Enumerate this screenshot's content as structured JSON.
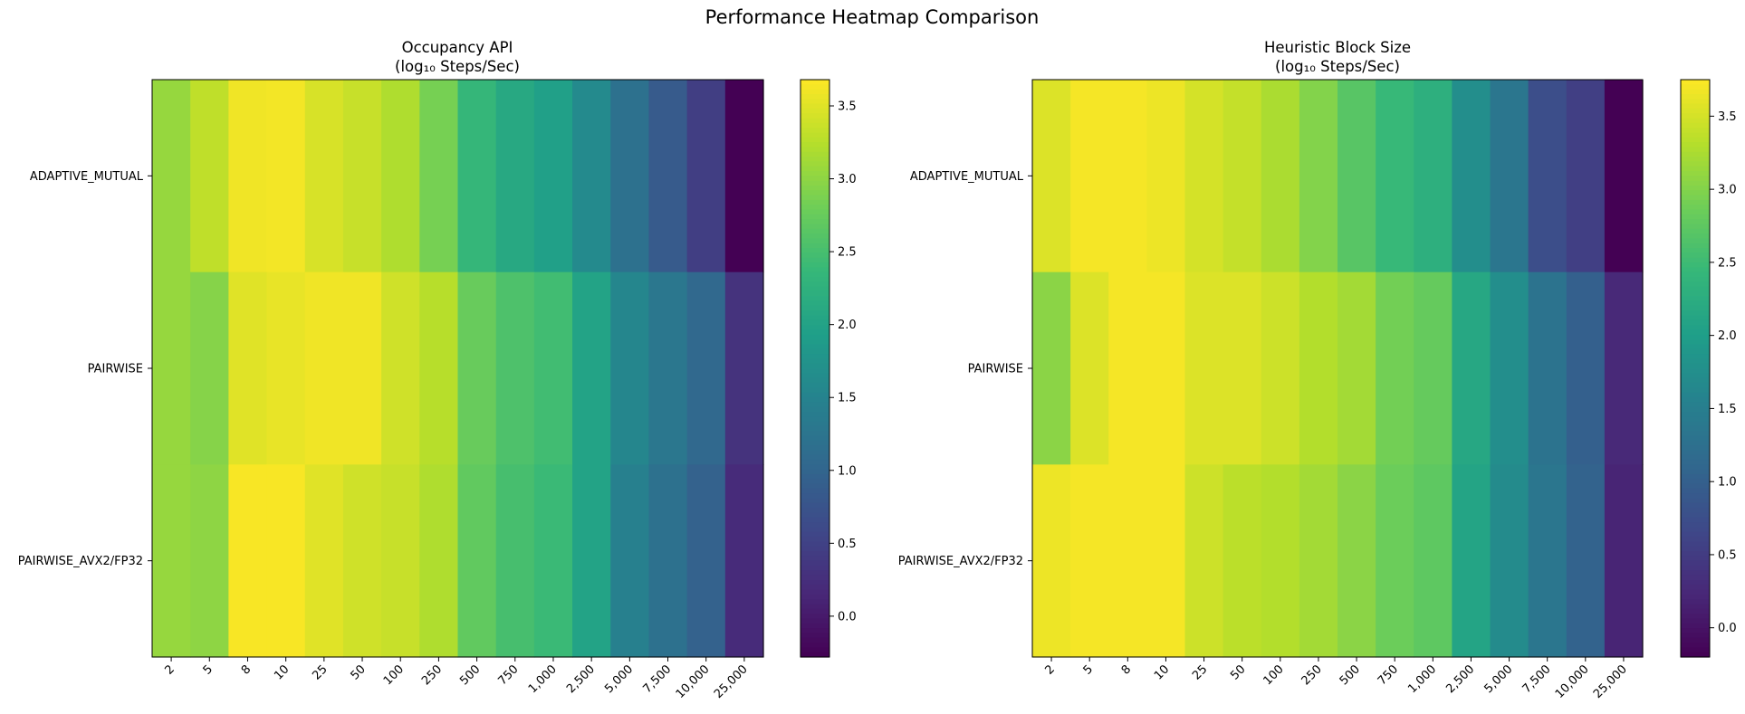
{
  "figure": {
    "title": "Performance Heatmap Comparison"
  },
  "chart_data": [
    {
      "type": "heatmap",
      "title": "Occupancy API",
      "subtitle": "(log₁₀ Steps/Sec)",
      "rows": [
        "ADAPTIVE_MUTUAL",
        "PAIRWISE",
        "PAIRWISE_AVX2/FP32"
      ],
      "columns": [
        "2",
        "5",
        "8",
        "10",
        "25",
        "50",
        "100",
        "250",
        "500",
        "750",
        "1,000",
        "2,500",
        "5,000",
        "7,500",
        "10,000",
        "25,000"
      ],
      "values": [
        [
          3.05,
          3.3,
          3.6,
          3.62,
          3.45,
          3.35,
          3.2,
          2.85,
          2.35,
          2.1,
          1.95,
          1.6,
          1.2,
          0.85,
          0.45,
          -0.28
        ],
        [
          3.05,
          2.95,
          3.5,
          3.55,
          3.6,
          3.6,
          3.4,
          3.25,
          2.75,
          2.55,
          2.45,
          2.0,
          1.55,
          1.3,
          1.05,
          0.3
        ],
        [
          3.05,
          3.0,
          3.65,
          3.65,
          3.5,
          3.4,
          3.35,
          3.2,
          2.7,
          2.5,
          2.4,
          2.0,
          1.45,
          1.2,
          0.95,
          0.2
        ]
      ],
      "colorbar": {
        "min": -0.28,
        "max": 3.68,
        "ticks": [
          0.0,
          0.5,
          1.0,
          1.5,
          2.0,
          2.5,
          3.0,
          3.5
        ]
      },
      "colormap": "viridis"
    },
    {
      "type": "heatmap",
      "title": "Heuristic Block Size",
      "subtitle": "(log₁₀ Steps/Sec)",
      "rows": [
        "ADAPTIVE_MUTUAL",
        "PAIRWISE",
        "PAIRWISE_AVX2/FP32"
      ],
      "columns": [
        "2",
        "5",
        "8",
        "10",
        "25",
        "50",
        "100",
        "250",
        "500",
        "750",
        "1,000",
        "2,500",
        "5,000",
        "7,500",
        "10,000",
        "25,000"
      ],
      "values": [
        [
          3.55,
          3.7,
          3.7,
          3.65,
          3.5,
          3.4,
          3.25,
          3.0,
          2.7,
          2.45,
          2.3,
          1.75,
          1.35,
          0.75,
          0.55,
          -0.2
        ],
        [
          3.05,
          3.55,
          3.7,
          3.7,
          3.55,
          3.55,
          3.45,
          3.3,
          3.2,
          2.9,
          2.8,
          2.15,
          1.75,
          1.3,
          1.0,
          0.25
        ],
        [
          3.65,
          3.7,
          3.7,
          3.7,
          3.45,
          3.35,
          3.3,
          3.2,
          3.05,
          2.85,
          2.75,
          2.1,
          1.7,
          1.35,
          1.05,
          0.2
        ]
      ],
      "colorbar": {
        "min": -0.2,
        "max": 3.75,
        "ticks": [
          0.0,
          0.5,
          1.0,
          1.5,
          2.0,
          2.5,
          3.0,
          3.5
        ]
      },
      "colormap": "viridis"
    }
  ]
}
